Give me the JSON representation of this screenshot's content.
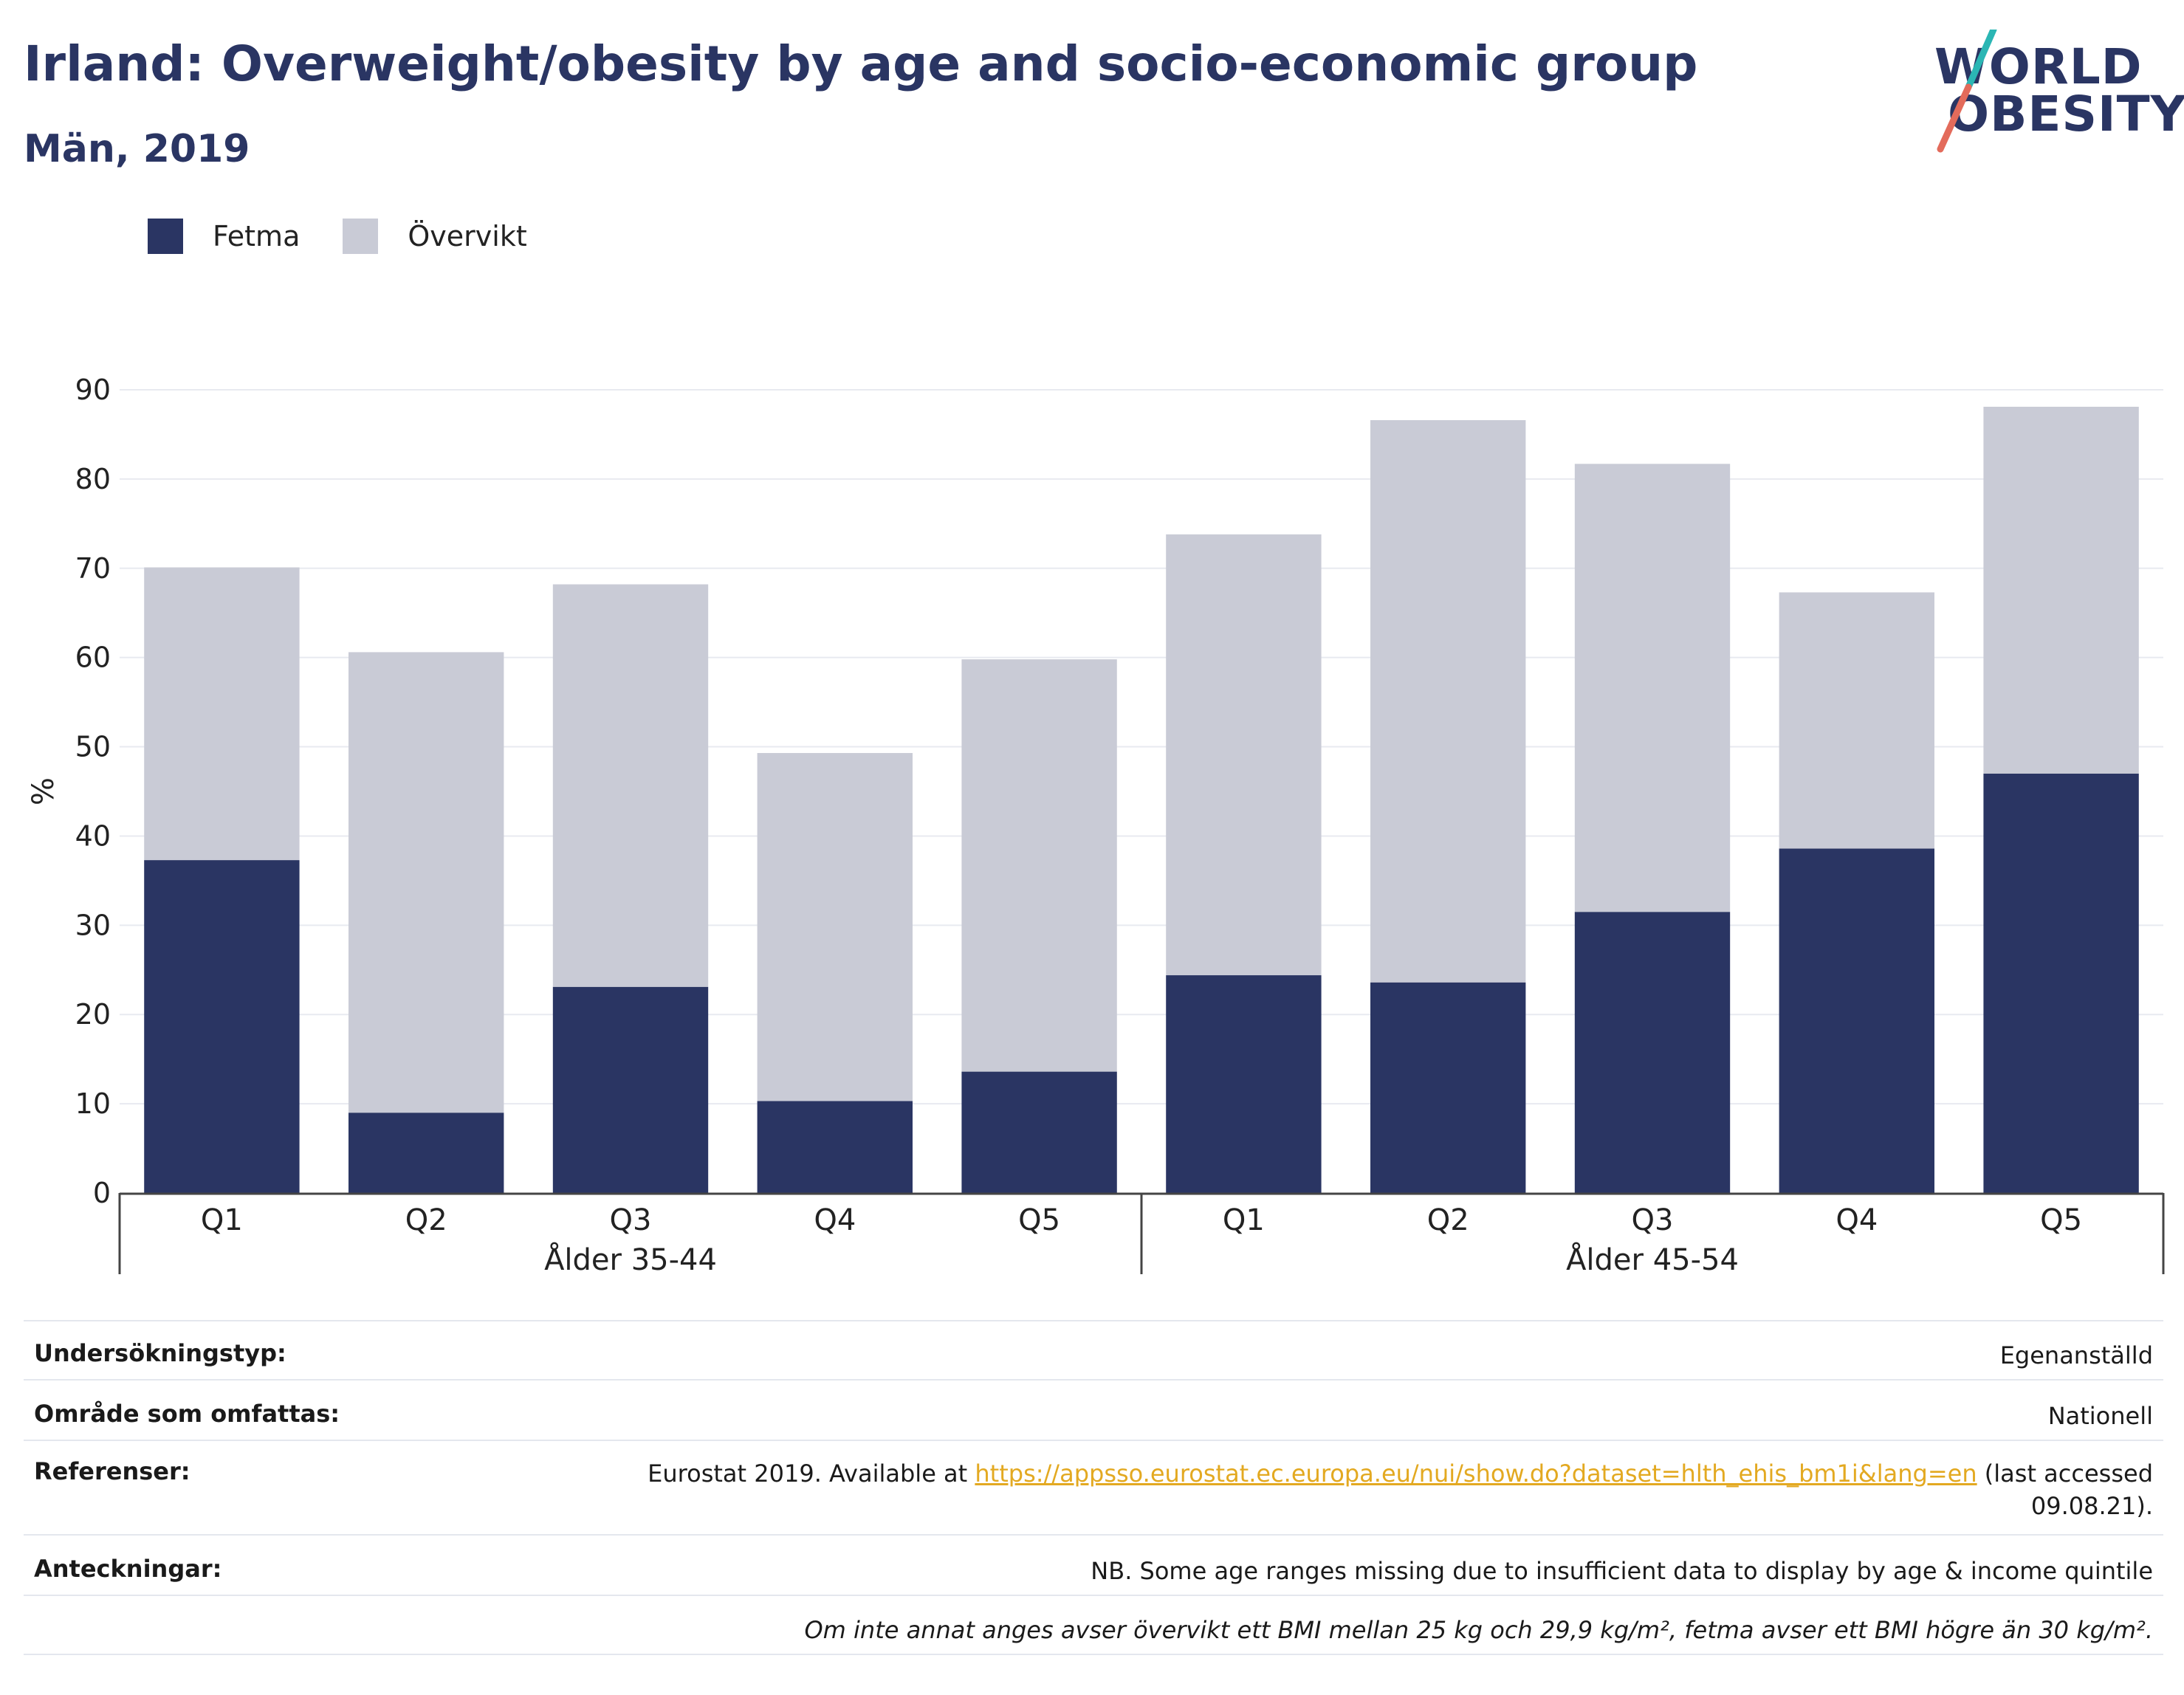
{
  "header": {
    "title": "Irland: Overweight/obesity by age and socio-economic group",
    "subtitle": "Män, 2019"
  },
  "logo": {
    "line1": "WORLD",
    "line2": "OBESITY"
  },
  "colors": {
    "fetma": "#2a3563",
    "overvikt": "#c9cbd6",
    "accent_teal": "#2bb6b4",
    "accent_red": "#e36b5b",
    "link": "#e3a921"
  },
  "legend": {
    "fetma": "Fetma",
    "overvikt": "Övervikt"
  },
  "chart_data": {
    "type": "bar",
    "stacked": true,
    "ylabel": "%",
    "ylim": [
      0,
      90
    ],
    "yticks": [
      0,
      10,
      20,
      30,
      40,
      50,
      60,
      70,
      80,
      90
    ],
    "grid": true,
    "legend_position": "top-left",
    "groups": [
      {
        "label": "Ålder 35-44",
        "categories": [
          "Q1",
          "Q2",
          "Q3",
          "Q4",
          "Q5"
        ]
      },
      {
        "label": "Ålder 45-54",
        "categories": [
          "Q1",
          "Q2",
          "Q3",
          "Q4",
          "Q5"
        ]
      }
    ],
    "series": [
      {
        "name": "Fetma",
        "values": [
          37.3,
          9.0,
          23.1,
          10.3,
          13.6,
          24.4,
          23.6,
          31.5,
          38.6,
          47.0
        ]
      },
      {
        "name": "Övervikt",
        "values": [
          32.8,
          51.6,
          45.1,
          39.0,
          46.2,
          49.4,
          63.0,
          50.2,
          28.7,
          41.1
        ]
      }
    ]
  },
  "info": {
    "survey_type_label": "Undersökningstyp:",
    "survey_type_value": "Egenanställd",
    "coverage_label": "Område som omfattas:",
    "coverage_value": "Nationell",
    "references_label": "Referenser:",
    "references_prefix": "Eurostat 2019. Available at ",
    "references_link": "https://appsso.eurostat.ec.europa.eu/nui/show.do?dataset=hlth_ehis_bm1i&lang=en",
    "references_suffix_1": " (last accessed",
    "references_suffix_2": "09.08.21).",
    "notes_label": "Anteckningar:",
    "notes_value": "NB. Some age ranges missing due to insufficient data to display by age & income quintile",
    "footnote": "Om inte annat anges avser övervikt ett BMI mellan 25 kg och 29,9 kg/m², fetma avser ett BMI högre än 30 kg/m²."
  }
}
